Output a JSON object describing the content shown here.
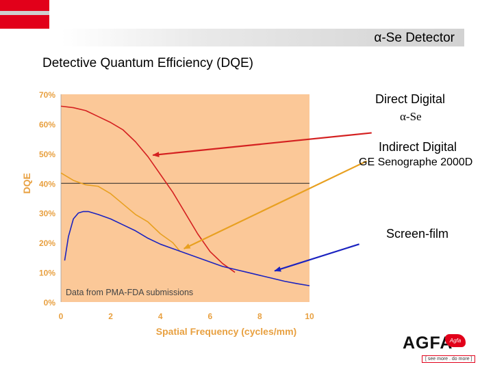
{
  "header": {
    "title": "α-Se Detector"
  },
  "page": {
    "title": "Detective Quantum Efficiency (DQE)"
  },
  "annotations": {
    "direct_digital": "Direct Digital",
    "direct_digital_sub": "α-Se",
    "indirect_digital": "Indirect Digital",
    "indirect_digital_sub": "GE Senographe 2000D",
    "screen_film": "Screen-film",
    "source_note": "Data from PMA-FDA submissions"
  },
  "logo": {
    "brand": "AGFA",
    "badge": "Agfa",
    "tagline": "[ see more . do more ]"
  },
  "colors": {
    "plot_bg": "#fbc898",
    "direct": "#d42020",
    "indirect": "#e8a020",
    "screen_film": "#1a22c0",
    "axis_text": "#e8a040",
    "arrow_direct": "#d42020",
    "arrow_indirect": "#e8a020",
    "arrow_screen": "#1a22c0"
  },
  "chart_data": {
    "type": "line",
    "title": "",
    "xlabel": "Spatial Frequency (cycles/mm)",
    "ylabel": "DQE",
    "xlim": [
      0,
      10
    ],
    "ylim": [
      0,
      70
    ],
    "x_ticks": [
      0,
      2,
      4,
      6,
      8,
      10
    ],
    "y_ticks": [
      0,
      10,
      20,
      30,
      40,
      50,
      60,
      70
    ],
    "y_tick_labels": [
      "0%",
      "10%",
      "20%",
      "30%",
      "40%",
      "50%",
      "60%",
      "70%"
    ],
    "reference_line_y": 40,
    "grid": false,
    "series": [
      {
        "key": "direct",
        "x": [
          0,
          0.5,
          1,
          1.5,
          2,
          2.5,
          3,
          3.5,
          4,
          4.5,
          5,
          5.5,
          6,
          6.5,
          7
        ],
        "y": [
          66,
          65.5,
          64.5,
          62.5,
          60.5,
          58,
          54,
          49,
          43,
          37,
          30,
          23,
          17,
          13,
          10
        ]
      },
      {
        "key": "indirect",
        "x": [
          0,
          0.5,
          1,
          1.5,
          2,
          2.5,
          3,
          3.5,
          4,
          4.5,
          4.8
        ],
        "y": [
          43.5,
          41,
          39.5,
          39,
          36.5,
          33,
          29.5,
          27,
          23,
          20,
          17
        ]
      },
      {
        "key": "screen_film",
        "x": [
          0.15,
          0.3,
          0.5,
          0.7,
          0.9,
          1.1,
          1.5,
          2,
          2.5,
          3,
          3.5,
          4,
          4.5,
          5,
          5.5,
          6,
          6.5,
          7,
          7.5,
          8,
          8.5,
          9,
          9.5,
          10
        ],
        "y": [
          14,
          22,
          28,
          30,
          30.5,
          30.5,
          29.5,
          28,
          26,
          24,
          21.5,
          19.5,
          18,
          16.5,
          15,
          13.5,
          12,
          11,
          10,
          9,
          8,
          7,
          6.2,
          5.5
        ]
      }
    ],
    "arrows": [
      {
        "key": "direct",
        "from": [
          12.5,
          57
        ],
        "to": [
          3.7,
          49.5
        ]
      },
      {
        "key": "indirect",
        "from": [
          12.3,
          47.5
        ],
        "to": [
          4.95,
          18
        ]
      },
      {
        "key": "screen_film",
        "from": [
          12.0,
          19.5
        ],
        "to": [
          8.6,
          10.5
        ]
      }
    ]
  }
}
